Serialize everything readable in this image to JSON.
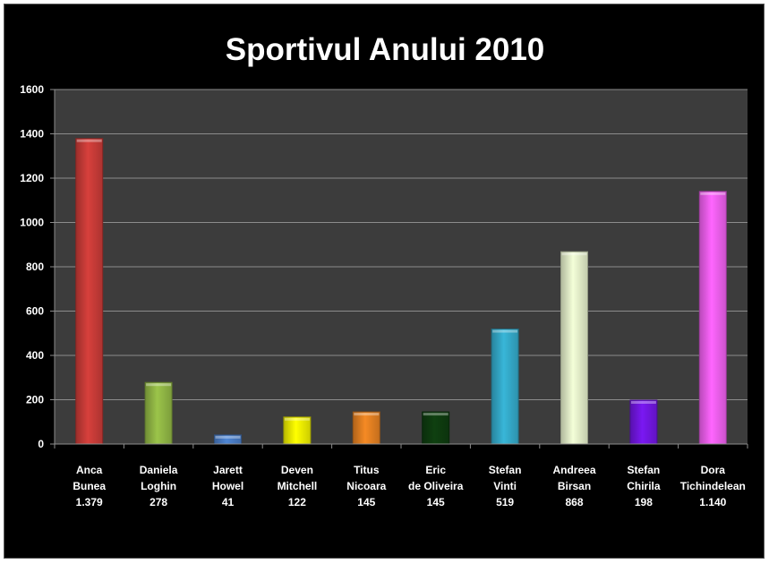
{
  "chart_data": {
    "type": "bar",
    "title": "Sportivul Anului 2010",
    "ylim": [
      0,
      1600
    ],
    "yticks": [
      0,
      200,
      400,
      600,
      800,
      1000,
      1200,
      1400,
      1600
    ],
    "grid": true,
    "legend": "none",
    "categories": [
      [
        "Anca",
        "Bunea"
      ],
      [
        "Daniela",
        "Loghin"
      ],
      [
        "Jarett",
        "Howel"
      ],
      [
        "Deven",
        "Mitchell"
      ],
      [
        "Titus",
        "Nicoara"
      ],
      [
        "Eric",
        "de Oliveira"
      ],
      [
        "Stefan",
        "Vinti"
      ],
      [
        "Andreea",
        "Birsan"
      ],
      [
        "Stefan",
        "Chirila"
      ],
      [
        "Dora",
        "Tichindelean"
      ]
    ],
    "values": [
      1379,
      278,
      41,
      122,
      145,
      145,
      519,
      868,
      198,
      1140
    ],
    "value_labels": [
      "1.379",
      "278",
      "41",
      "122",
      "145",
      "145",
      "519",
      "868",
      "198",
      "1.140"
    ],
    "colors": [
      "#d7403c",
      "#9bc44a",
      "#4f86d4",
      "#ffff00",
      "#f58a24",
      "#0f4010",
      "#38b6d8",
      "#f4ffd8",
      "#7a18f2",
      "#ff66ff"
    ]
  }
}
